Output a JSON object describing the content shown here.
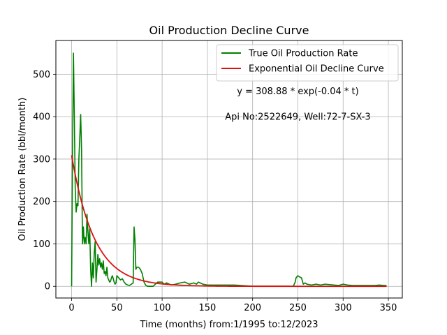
{
  "chart_data": {
    "type": "line",
    "title": "Oil Production Decline Curve",
    "xlabel": "Time (months) from:1/1995 to:12/2023",
    "ylabel": "Oil Production Rate (bbl/month)",
    "xlim": [
      -17.4,
      365.4
    ],
    "ylim": [
      -27.6,
      579.6
    ],
    "xticks": [
      0,
      50,
      100,
      150,
      200,
      250,
      300,
      350
    ],
    "yticks": [
      0,
      100,
      200,
      300,
      400,
      500
    ],
    "grid": true,
    "legend_position": "top-right",
    "annotations": [
      {
        "text": "y = 308.88 * exp(-0.04 * t)",
        "x": 250,
        "y": 460
      },
      {
        "text": "Api No:2522649, Well:72-7-SX-3",
        "x": 250,
        "y": 400
      }
    ],
    "series": [
      {
        "name": "True Oil Production Rate",
        "color": "#008000",
        "style": "line",
        "x": [
          0,
          1,
          2,
          3,
          4,
          5,
          6,
          7,
          8,
          9,
          10,
          11,
          12,
          13,
          14,
          15,
          16,
          17,
          18,
          19,
          20,
          21,
          22,
          23,
          24,
          25,
          26,
          27,
          28,
          29,
          30,
          31,
          32,
          33,
          34,
          35,
          36,
          37,
          38,
          39,
          40,
          41,
          42,
          43,
          44,
          45,
          46,
          47,
          48,
          49,
          50,
          52,
          54,
          56,
          58,
          60,
          62,
          64,
          66,
          68,
          69,
          70,
          71,
          72,
          74,
          76,
          78,
          80,
          82,
          84,
          86,
          90,
          95,
          100,
          102,
          105,
          110,
          115,
          120,
          125,
          130,
          135,
          138,
          140,
          145,
          150,
          160,
          180,
          200,
          220,
          240,
          245,
          247,
          248,
          250,
          252,
          254,
          256,
          258,
          260,
          265,
          270,
          275,
          280,
          290,
          295,
          300,
          305,
          310,
          320,
          330,
          335,
          340,
          345,
          348
        ],
        "y": [
          0,
          320,
          550,
          400,
          230,
          175,
          195,
          190,
          300,
          350,
          405,
          320,
          100,
          140,
          100,
          115,
          100,
          170,
          130,
          100,
          135,
          40,
          0,
          55,
          20,
          80,
          105,
          10,
          40,
          75,
          50,
          65,
          45,
          55,
          40,
          60,
          30,
          35,
          25,
          45,
          20,
          15,
          10,
          12,
          20,
          25,
          18,
          10,
          5,
          8,
          25,
          20,
          15,
          18,
          10,
          5,
          3,
          2,
          5,
          8,
          140,
          110,
          40,
          45,
          45,
          40,
          30,
          10,
          2,
          0,
          0,
          0,
          10,
          10,
          5,
          8,
          3,
          5,
          8,
          10,
          5,
          8,
          5,
          10,
          5,
          3,
          3,
          3,
          0,
          0,
          0,
          0,
          10,
          20,
          25,
          22,
          20,
          5,
          8,
          5,
          3,
          5,
          3,
          5,
          3,
          2,
          5,
          3,
          2,
          2,
          2,
          2,
          3,
          2,
          2
        ]
      },
      {
        "name": "Exponential Oil Decline Curve",
        "color": "#dd1111",
        "style": "exponential-fit",
        "a": 308.88,
        "b": -0.04,
        "x_range": [
          0,
          348
        ]
      }
    ]
  }
}
